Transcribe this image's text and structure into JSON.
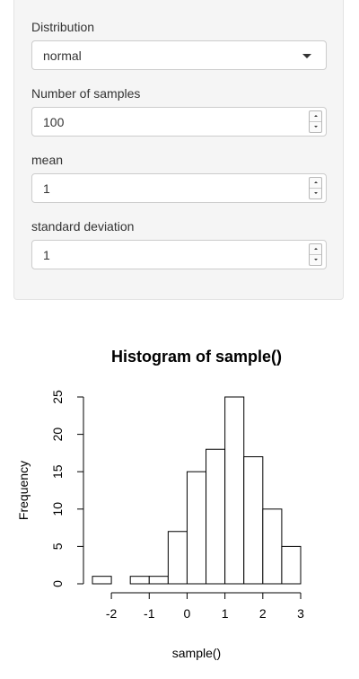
{
  "controls": {
    "distribution": {
      "label": "Distribution",
      "value": "normal"
    },
    "samples": {
      "label": "Number of samples",
      "value": "100"
    },
    "mean": {
      "label": "mean",
      "value": "1"
    },
    "sd": {
      "label": "standard deviation",
      "value": "1"
    }
  },
  "chart_data": {
    "type": "bar",
    "title": "Histogram of sample()",
    "xlabel": "sample()",
    "ylabel": "Frequency",
    "bin_edges": [
      -2.5,
      -2,
      -1.5,
      -1,
      -0.5,
      0,
      0.5,
      1,
      1.5,
      2,
      2.5,
      3
    ],
    "values": [
      1,
      0,
      1,
      1,
      7,
      15,
      18,
      25,
      17,
      10,
      5
    ],
    "x_ticks": [
      -2,
      -1,
      0,
      1,
      2,
      3
    ],
    "y_ticks": [
      0,
      5,
      10,
      15,
      20,
      25
    ],
    "xlim": [
      -2.5,
      3
    ],
    "ylim": [
      0,
      25
    ],
    "grid": false,
    "legend": "none"
  }
}
